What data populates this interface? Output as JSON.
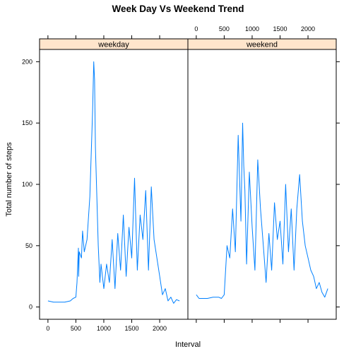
{
  "chart_data": {
    "type": "line",
    "title": "Week Day Vs Weekend Trend",
    "xlabel": "Interval",
    "ylabel": "Total number of steps",
    "xlim": [
      -150,
      2505
    ],
    "ylim": [
      -10,
      210
    ],
    "x_ticks": [
      0,
      500,
      1000,
      1500,
      2000
    ],
    "x_tick_labels": [
      "0",
      "500",
      "1000",
      "1500",
      "2000"
    ],
    "y_ticks": [
      0,
      50,
      100,
      150,
      200
    ],
    "y_tick_labels": [
      "0",
      "50",
      "100",
      "150",
      "200"
    ],
    "line_color": "#0080ff",
    "strip_color": "#ffe5cc",
    "panels": [
      {
        "name": "weekday",
        "x": [
          0,
          100,
          200,
          300,
          400,
          450,
          500,
          520,
          545,
          550,
          560,
          600,
          620,
          650,
          700,
          750,
          800,
          820,
          835,
          850,
          900,
          930,
          950,
          1000,
          1050,
          1100,
          1150,
          1200,
          1250,
          1300,
          1350,
          1400,
          1450,
          1500,
          1550,
          1600,
          1650,
          1700,
          1750,
          1800,
          1850,
          1900,
          1950,
          2000,
          2050,
          2100,
          2150,
          2200,
          2250,
          2300,
          2355
        ],
        "values": [
          5,
          4,
          4,
          4,
          5,
          7,
          8,
          20,
          48,
          25,
          45,
          40,
          62,
          45,
          55,
          90,
          160,
          200,
          185,
          130,
          50,
          20,
          35,
          15,
          35,
          20,
          55,
          15,
          60,
          30,
          75,
          25,
          65,
          40,
          105,
          30,
          75,
          55,
          95,
          30,
          98,
          55,
          40,
          25,
          10,
          15,
          5,
          8,
          3,
          6,
          5
        ]
      },
      {
        "name": "weekend",
        "x": [
          0,
          50,
          100,
          200,
          300,
          400,
          450,
          500,
          550,
          600,
          650,
          700,
          750,
          800,
          830,
          850,
          870,
          900,
          950,
          1000,
          1050,
          1100,
          1150,
          1200,
          1250,
          1300,
          1350,
          1400,
          1450,
          1500,
          1550,
          1600,
          1650,
          1700,
          1750,
          1800,
          1850,
          1900,
          1950,
          2000,
          2050,
          2100,
          2150,
          2200,
          2250,
          2300,
          2355
        ],
        "values": [
          10,
          7,
          7,
          7,
          8,
          8,
          7,
          10,
          50,
          40,
          80,
          45,
          140,
          70,
          150,
          115,
          95,
          35,
          110,
          65,
          30,
          120,
          80,
          50,
          20,
          60,
          30,
          85,
          55,
          70,
          35,
          100,
          45,
          80,
          30,
          80,
          108,
          70,
          50,
          40,
          30,
          25,
          15,
          20,
          12,
          8,
          15
        ]
      }
    ]
  }
}
